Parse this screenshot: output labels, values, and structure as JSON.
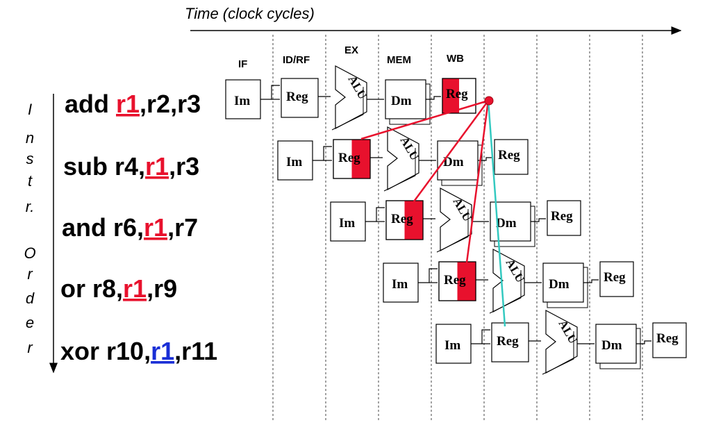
{
  "time_label": "Time (clock cycles)",
  "order_label": [
    "I",
    "n",
    "s",
    "t",
    "r.",
    "O",
    "r",
    "d",
    "e",
    "r"
  ],
  "stages": [
    "IF",
    "ID/RF",
    "EX",
    "MEM",
    "WB"
  ],
  "units": {
    "im": "Im",
    "reg": "Reg",
    "alu": "ALU",
    "dm": "Dm"
  },
  "instructions": [
    {
      "pre": "add ",
      "reg": "r1",
      "post": ",r2,r3",
      "color": "red"
    },
    {
      "pre": "sub r4,",
      "reg": "r1",
      "post": ",r3",
      "color": "red"
    },
    {
      "pre": "and r6,",
      "reg": "r1",
      "post": ",r7",
      "color": "red"
    },
    {
      "pre": "or   r8,",
      "reg": "r1",
      "post": ",r9",
      "color": "red"
    },
    {
      "pre": "xor r10,",
      "reg": "r1",
      "post": ",r11",
      "color": "blue"
    }
  ],
  "colors": {
    "hazard": "#e8112d",
    "forward_ok": "#33c9c0",
    "blue": "#1a2fd6"
  }
}
